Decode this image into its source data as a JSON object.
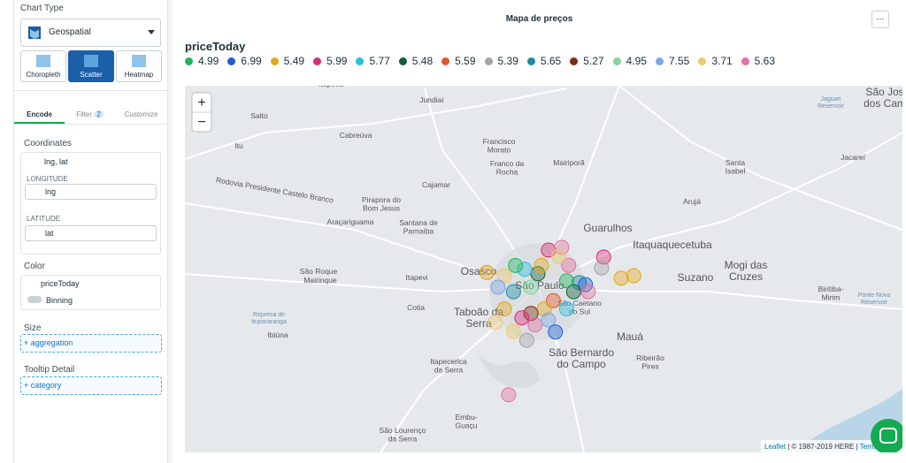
{
  "sidebar": {
    "chart_type_label": "Chart Type",
    "chart_type": "Geospatial",
    "subtypes": [
      "Choropleth",
      "Scatter",
      "Heatmap"
    ],
    "tabs": {
      "encode": "Encode",
      "filter": "Filter",
      "filter_count": "2",
      "customize": "Customize"
    },
    "coordinates": {
      "label": "Coordinates",
      "field": "lng, lat",
      "longitude_label": "LONGITUDE",
      "longitude": "lng",
      "latitude_label": "LATITUDE",
      "latitude": "lat"
    },
    "color": {
      "label": "Color",
      "field": "priceToday",
      "binning": "Binning"
    },
    "size": {
      "label": "Size",
      "add": "+ aggregation"
    },
    "tooltip": {
      "label": "Tooltip Detail",
      "add": "+ category"
    }
  },
  "chart_data": {
    "type": "scatter-map",
    "title": "Mapa de preços",
    "menu": "···",
    "legend_title": "priceToday",
    "legend": [
      {
        "value": 4.99,
        "color": "#21b55b"
      },
      {
        "value": 6.99,
        "color": "#1a5fd1"
      },
      {
        "value": 5.49,
        "color": "#e3a619"
      },
      {
        "value": 5.99,
        "color": "#d62e7a"
      },
      {
        "value": 5.77,
        "color": "#2bbde0"
      },
      {
        "value": 5.48,
        "color": "#0f5e3c"
      },
      {
        "value": 5.59,
        "color": "#e0582a"
      },
      {
        "value": 5.39,
        "color": "#a3a3a3"
      },
      {
        "value": 5.65,
        "color": "#1a8ea6"
      },
      {
        "value": 5.27,
        "color": "#7a2a0d"
      },
      {
        "value": 4.95,
        "color": "#7fd69b"
      },
      {
        "value": 7.55,
        "color": "#7aa7e8"
      },
      {
        "value": 3.71,
        "color": "#ecc96a"
      },
      {
        "value": 5.63,
        "color": "#e36fa3"
      }
    ],
    "points": [
      {
        "lng": -46.615,
        "lat": -23.492,
        "price": 5.99
      },
      {
        "lng": -46.596,
        "lat": -23.488,
        "price": 5.63
      },
      {
        "lng": -46.586,
        "lat": -23.516,
        "price": 5.63
      },
      {
        "lng": -46.536,
        "lat": -23.503,
        "price": 5.99
      },
      {
        "lng": -46.539,
        "lat": -23.52,
        "price": 5.39
      },
      {
        "lng": -46.493,
        "lat": -23.532,
        "price": 5.49
      },
      {
        "lng": -46.511,
        "lat": -23.536,
        "price": 5.49
      },
      {
        "lng": -46.63,
        "lat": -23.529,
        "price": 5.48
      },
      {
        "lng": -46.649,
        "lat": -23.522,
        "price": 5.77
      },
      {
        "lng": -46.662,
        "lat": -23.516,
        "price": 4.99
      },
      {
        "lng": -46.678,
        "lat": -23.532,
        "price": 3.71
      },
      {
        "lng": -46.687,
        "lat": -23.55,
        "price": 7.55
      },
      {
        "lng": -46.665,
        "lat": -23.557,
        "price": 5.65
      },
      {
        "lng": -46.64,
        "lat": -23.55,
        "price": 4.95
      },
      {
        "lng": -46.571,
        "lat": -23.543,
        "price": 5.65
      },
      {
        "lng": -46.562,
        "lat": -23.546,
        "price": 6.99
      },
      {
        "lng": -46.579,
        "lat": -23.557,
        "price": 5.48
      },
      {
        "lng": -46.589,
        "lat": -23.54,
        "price": 4.99
      },
      {
        "lng": -46.608,
        "lat": -23.571,
        "price": 5.59
      },
      {
        "lng": -46.621,
        "lat": -23.584,
        "price": 5.49
      },
      {
        "lng": -46.64,
        "lat": -23.591,
        "price": 5.27
      },
      {
        "lng": -46.653,
        "lat": -23.598,
        "price": 5.99
      },
      {
        "lng": -46.634,
        "lat": -23.609,
        "price": 5.63
      },
      {
        "lng": -46.615,
        "lat": -23.601,
        "price": 7.55
      },
      {
        "lng": -46.665,
        "lat": -23.619,
        "price": 3.71
      },
      {
        "lng": -46.646,
        "lat": -23.633,
        "price": 5.39
      },
      {
        "lng": -46.678,
        "lat": -23.584,
        "price": 5.49
      },
      {
        "lng": -46.691,
        "lat": -23.605,
        "price": 3.71
      },
      {
        "lng": -46.589,
        "lat": -23.584,
        "price": 5.77
      },
      {
        "lng": -46.6,
        "lat": -23.502,
        "price": 3.71
      },
      {
        "lng": -46.625,
        "lat": -23.516,
        "price": 5.49
      },
      {
        "lng": -46.672,
        "lat": -23.718,
        "price": 5.63
      },
      {
        "lng": -46.558,
        "lat": -23.557,
        "price": 5.63
      },
      {
        "lng": -46.605,
        "lat": -23.62,
        "price": 6.99
      },
      {
        "lng": -46.703,
        "lat": -23.527,
        "price": 5.49
      }
    ],
    "zoom": [
      "+",
      "−"
    ],
    "attribution": {
      "link": "Leaflet",
      "text": " | © 1987-2019 HERE | ",
      "terms": "Term"
    },
    "map_labels": [
      [
        "Itupeva"
      ],
      [
        "Jundiaí"
      ],
      [
        "Salto"
      ],
      [
        "Itu"
      ],
      [
        "Cabreúva"
      ],
      [
        "Francisco",
        "Morato"
      ],
      [
        "Franco da",
        "Rocha"
      ],
      [
        "Mairiporã"
      ],
      [
        "Cajamar"
      ],
      [
        "Pirapora do",
        "Bom Jesus"
      ],
      [
        "Santana de",
        "Parnaíba"
      ],
      [
        "Araçariguama"
      ],
      [
        "Guarulhos"
      ],
      [
        "Itaquaquecetuba"
      ],
      [
        "Osasco"
      ],
      [
        "São Roque"
      ],
      [
        "Mairinque"
      ],
      [
        "Itapevi"
      ],
      [
        "Cotia"
      ],
      [
        "Taboão da",
        "Serra"
      ],
      [
        "São Paulo"
      ],
      [
        "São Caetano",
        "do Sul"
      ],
      [
        "Mauá"
      ],
      [
        "São Bernardo",
        "do Campo"
      ],
      [
        "Ribeirão",
        "Pires"
      ],
      [
        "Itapecerica",
        "da Serra"
      ],
      [
        "Embu-",
        "Guaçu"
      ],
      [
        "São Lourenço",
        "da Serra"
      ],
      [
        "Ibiúna"
      ],
      [
        "Suzano"
      ],
      [
        "Mogi das",
        "Cruzes"
      ],
      [
        "Santa",
        "Isabel"
      ],
      [
        "Jacareí"
      ],
      [
        "Arujá"
      ],
      [
        "São Jos",
        "dos Cam"
      ],
      [
        "Biritiba-",
        "Mirim"
      ],
      [
        "Represa de",
        "Itupararanga"
      ],
      [
        "Rodovia Presidente Castelo Branco"
      ],
      [
        "Jaguari",
        "Reservoir"
      ],
      [
        "Ponte Nova",
        "Reservoir"
      ]
    ]
  }
}
